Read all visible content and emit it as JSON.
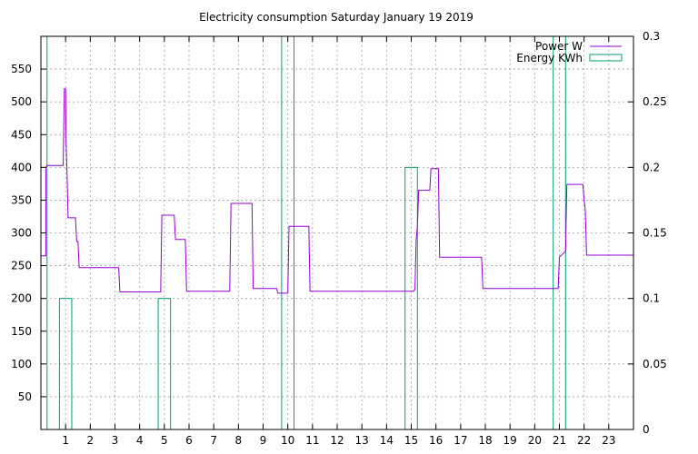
{
  "chart_data": {
    "type": "line",
    "title": "Electricity consumption Saturday January 19 2019",
    "xlabel": "",
    "ylabel": "",
    "xlim": [
      0,
      24
    ],
    "ylim": [
      0,
      600
    ],
    "y2lim": [
      0,
      0.3
    ],
    "grid": true,
    "legend_position": "top-right",
    "x_ticks": [
      1,
      2,
      3,
      4,
      5,
      6,
      7,
      8,
      9,
      10,
      11,
      12,
      13,
      14,
      15,
      16,
      17,
      18,
      19,
      20,
      21,
      22,
      23
    ],
    "y_ticks": [
      50,
      100,
      150,
      200,
      250,
      300,
      350,
      400,
      450,
      500,
      550
    ],
    "y2_ticks": [
      0,
      0.05,
      0.1,
      0.15,
      0.2,
      0.25,
      0.3
    ],
    "y2_tick_labels": [
      "0",
      "0.05",
      "0.1",
      "0.15",
      "0.2",
      "0.25",
      "0.3"
    ],
    "series": [
      {
        "name": "Power W",
        "axis": "y",
        "style": "step",
        "color": "#9400d3",
        "points": [
          [
            0.0,
            265
          ],
          [
            0.2,
            265
          ],
          [
            0.2,
            400
          ],
          [
            0.25,
            403
          ],
          [
            0.9,
            403
          ],
          [
            0.95,
            520
          ],
          [
            1.0,
            520
          ],
          [
            1.02,
            440
          ],
          [
            1.06,
            390
          ],
          [
            1.1,
            323
          ],
          [
            1.4,
            323
          ],
          [
            1.45,
            287
          ],
          [
            1.5,
            287
          ],
          [
            1.55,
            247
          ],
          [
            3.15,
            247
          ],
          [
            3.2,
            210
          ],
          [
            4.85,
            210
          ],
          [
            4.9,
            327
          ],
          [
            5.4,
            327
          ],
          [
            5.45,
            290
          ],
          [
            5.85,
            290
          ],
          [
            5.9,
            211
          ],
          [
            7.65,
            211
          ],
          [
            7.7,
            345
          ],
          [
            8.55,
            345
          ],
          [
            8.6,
            215
          ],
          [
            9.55,
            215
          ],
          [
            9.6,
            208
          ],
          [
            10.0,
            208
          ],
          [
            10.05,
            310
          ],
          [
            10.85,
            310
          ],
          [
            10.9,
            211
          ],
          [
            15.1,
            211
          ],
          [
            15.15,
            214
          ],
          [
            15.2,
            290
          ],
          [
            15.25,
            310
          ],
          [
            15.3,
            365
          ],
          [
            15.75,
            365
          ],
          [
            15.8,
            398
          ],
          [
            16.1,
            398
          ],
          [
            16.15,
            263
          ],
          [
            17.85,
            263
          ],
          [
            17.9,
            215
          ],
          [
            20.95,
            215
          ],
          [
            21.0,
            263
          ],
          [
            21.25,
            272
          ],
          [
            21.3,
            374
          ],
          [
            21.95,
            374
          ],
          [
            22.0,
            350
          ],
          [
            22.05,
            335
          ],
          [
            22.1,
            266
          ],
          [
            24.0,
            266
          ]
        ]
      },
      {
        "name": "Energy KWh",
        "axis": "y2",
        "style": "boxes",
        "color": "#009e73",
        "boxes": [
          {
            "x0": 0.0,
            "x1": 0.25,
            "value": 0.3
          },
          {
            "x0": 0.75,
            "x1": 1.25,
            "value": 0.1
          },
          {
            "x0": 4.75,
            "x1": 5.25,
            "value": 0.1
          },
          {
            "x0": 9.75,
            "x1": 10.25,
            "value": 0.3
          },
          {
            "x0": 14.75,
            "x1": 15.25,
            "value": 0.2
          },
          {
            "x0": 20.75,
            "x1": 21.25,
            "value": 0.3
          }
        ]
      }
    ]
  }
}
